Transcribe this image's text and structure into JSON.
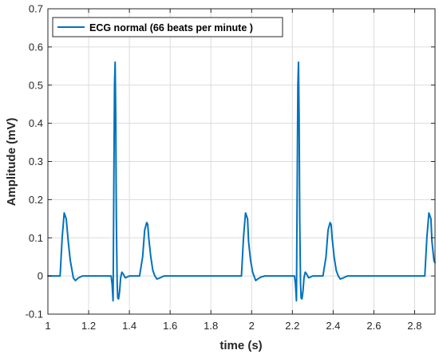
{
  "chart_data": {
    "type": "line",
    "title": "",
    "xlabel": "time (s)",
    "ylabel": "Amplitude (mV)",
    "xlim": [
      1,
      2.9
    ],
    "ylim": [
      -0.1,
      0.7
    ],
    "x_ticks": [
      1,
      1.2,
      1.4,
      1.6,
      1.8,
      2,
      2.2,
      2.4,
      2.6,
      2.8
    ],
    "x_tick_labels": [
      "1",
      "1.2",
      "1.4",
      "1.6",
      "1.8",
      "2",
      "2.2",
      "2.4",
      "2.6",
      "2.8"
    ],
    "y_ticks": [
      -0.1,
      0,
      0.1,
      0.2,
      0.3,
      0.4,
      0.5,
      0.6,
      0.7
    ],
    "y_tick_labels": [
      "-0.1",
      "0",
      "0.1",
      "0.2",
      "0.3",
      "0.4",
      "0.5",
      "0.6",
      "0.7"
    ],
    "grid": true,
    "legend_position": "top-left",
    "series": [
      {
        "name": "ECG normal (66 beats per minute )",
        "color": "#0072BD",
        "x": [
          1.0,
          1.06,
          1.07,
          1.08,
          1.09,
          1.1,
          1.11,
          1.12,
          1.125,
          1.135,
          1.15,
          1.17,
          1.2,
          1.31,
          1.315,
          1.32,
          1.325,
          1.327,
          1.33,
          1.333,
          1.336,
          1.34,
          1.343,
          1.347,
          1.352,
          1.357,
          1.363,
          1.37,
          1.38,
          1.4,
          1.45,
          1.465,
          1.475,
          1.485,
          1.49,
          1.495,
          1.505,
          1.515,
          1.525,
          1.535,
          1.55,
          1.57,
          1.6,
          1.95,
          1.96,
          1.97,
          1.98,
          1.985,
          1.995,
          2.005,
          2.015,
          2.02,
          2.03,
          2.045,
          2.065,
          2.1,
          2.21,
          2.215,
          2.22,
          2.225,
          2.227,
          2.23,
          2.233,
          2.236,
          2.24,
          2.243,
          2.247,
          2.252,
          2.257,
          2.263,
          2.27,
          2.28,
          2.3,
          2.35,
          2.365,
          2.375,
          2.385,
          2.39,
          2.395,
          2.405,
          2.415,
          2.425,
          2.435,
          2.45,
          2.47,
          2.5,
          2.85,
          2.86,
          2.87,
          2.88,
          2.885,
          2.895,
          2.9
        ],
        "y": [
          0.0,
          0.0,
          0.1,
          0.165,
          0.15,
          0.09,
          0.04,
          0.01,
          -0.005,
          -0.012,
          -0.005,
          0.0,
          0.0,
          0.0,
          -0.02,
          -0.065,
          0.35,
          0.5,
          0.56,
          0.42,
          0.15,
          -0.02,
          -0.058,
          -0.06,
          -0.04,
          -0.005,
          0.01,
          0.005,
          -0.005,
          0.0,
          0.0,
          0.05,
          0.12,
          0.14,
          0.135,
          0.1,
          0.05,
          0.015,
          0.0,
          -0.008,
          -0.005,
          0.0,
          0.0,
          0.0,
          0.1,
          0.165,
          0.15,
          0.09,
          0.04,
          0.01,
          -0.005,
          -0.012,
          -0.008,
          -0.003,
          0.0,
          0.0,
          0.0,
          -0.02,
          -0.065,
          0.35,
          0.5,
          0.56,
          0.42,
          0.15,
          -0.02,
          -0.058,
          -0.06,
          -0.04,
          -0.005,
          0.01,
          0.005,
          -0.005,
          0.0,
          0.0,
          0.05,
          0.12,
          0.14,
          0.135,
          0.1,
          0.05,
          0.015,
          0.0,
          -0.008,
          -0.005,
          0.0,
          0.0,
          0.0,
          0.1,
          0.165,
          0.15,
          0.09,
          0.04,
          0.035
        ]
      }
    ]
  }
}
